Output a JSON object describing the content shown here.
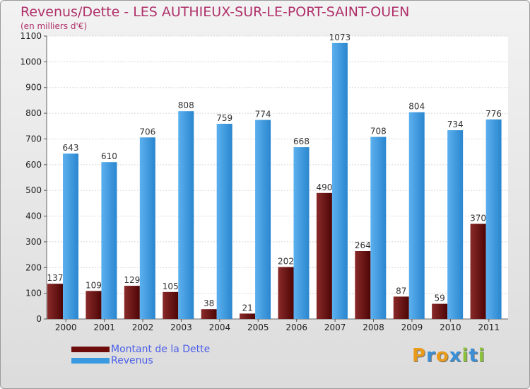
{
  "header": {
    "title": "Revenus/Dette - LES AUTHIEUX-SUR-LE-PORT-SAINT-OUEN",
    "subtitle": "(en milliers d'€)"
  },
  "legend": {
    "items": [
      {
        "label": "Montant de la Dette",
        "color": "#6e0c0c"
      },
      {
        "label": "Revenus",
        "color": "#3a9ae0"
      }
    ]
  },
  "logo": {
    "letters": [
      "P",
      "r",
      "o",
      "x",
      "i",
      "t",
      "i"
    ],
    "colors": [
      "#e89a1a",
      "#3a8fd6",
      "#e89a1a",
      "#3a8fd6",
      "#8ac23a",
      "#3a8fd6",
      "#8ac23a"
    ]
  },
  "chart_data": {
    "type": "bar",
    "title": "Revenus/Dette - LES AUTHIEUX-SUR-LE-PORT-SAINT-OUEN",
    "ylabel": "(en milliers d'€)",
    "categories": [
      "2000",
      "2001",
      "2002",
      "2003",
      "2004",
      "2005",
      "2006",
      "2007",
      "2008",
      "2009",
      "2010",
      "2011"
    ],
    "series": [
      {
        "name": "Montant de la Dette",
        "color": "#6e0c0c",
        "values": [
          137,
          109,
          129,
          105,
          38,
          21,
          202,
          490,
          264,
          87,
          59,
          370
        ]
      },
      {
        "name": "Revenus",
        "color": "#3a9ae0",
        "values": [
          643,
          610,
          706,
          808,
          759,
          774,
          668,
          1073,
          708,
          804,
          734,
          776
        ]
      }
    ],
    "ylim": [
      0,
      1100
    ],
    "yticks": [
      0,
      100,
      200,
      300,
      400,
      500,
      600,
      700,
      800,
      900,
      1000,
      1100
    ],
    "grid": true,
    "legend_position": "bottom-left"
  }
}
